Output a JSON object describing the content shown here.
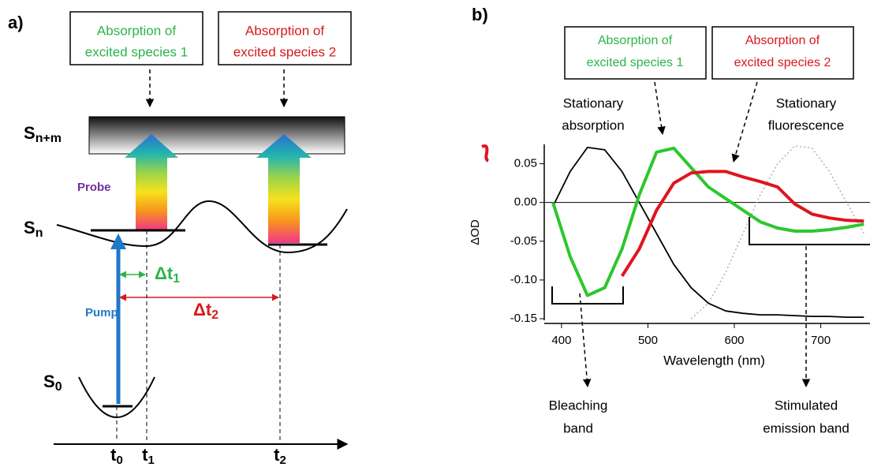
{
  "panel_a": {
    "label": "a)",
    "box_1": [
      "Absorption of",
      "excited species 1"
    ],
    "box_2": [
      "Absorption of",
      "excited species 2"
    ],
    "level_top": {
      "main": "S",
      "sub": "n+m"
    },
    "level_mid": {
      "main": "S",
      "sub": "n"
    },
    "level_ground": {
      "main": "S",
      "sub": "0"
    },
    "probe": "Probe",
    "pump": "Pump",
    "delta_1": {
      "main": "Δt",
      "sub": "1"
    },
    "delta_2": {
      "main": "Δt",
      "sub": "2"
    },
    "times": [
      {
        "main": "t",
        "sub": "0"
      },
      {
        "main": "t",
        "sub": "1"
      },
      {
        "main": "t",
        "sub": "2"
      }
    ]
  },
  "chart_data": {
    "type": "line",
    "label": "b)",
    "x_label": "Wavelength (nm)",
    "y_label": "ΔOD",
    "x": [
      390,
      410,
      430,
      450,
      470,
      490,
      510,
      530,
      550,
      570,
      590,
      610,
      630,
      650,
      670,
      690,
      710,
      730,
      750
    ],
    "series": [
      {
        "name": "Stationary absorption",
        "color": "#000000",
        "dash": false,
        "values": [
          -0.005,
          0.04,
          0.071,
          0.068,
          0.04,
          0.0,
          -0.04,
          -0.08,
          -0.11,
          -0.13,
          -0.14,
          -0.143,
          -0.145,
          -0.145,
          -0.146,
          -0.147,
          -0.147,
          -0.148,
          -0.148
        ]
      },
      {
        "name": "Stationary fluorescence",
        "color": "#b0b0b0",
        "dash": true,
        "values": [
          null,
          null,
          null,
          null,
          null,
          null,
          null,
          null,
          -0.15,
          -0.13,
          -0.09,
          -0.04,
          0.01,
          0.05,
          0.073,
          0.07,
          0.04,
          0.0,
          -0.04
        ]
      },
      {
        "name": "Absorption of excited species 1",
        "color": "#2cc72c",
        "dash": false,
        "values": [
          0.0,
          -0.07,
          -0.12,
          -0.11,
          -0.06,
          0.01,
          0.065,
          0.07,
          0.045,
          0.02,
          0.005,
          -0.01,
          -0.025,
          -0.033,
          -0.037,
          -0.037,
          -0.035,
          -0.032,
          -0.028
        ]
      },
      {
        "name": "Absorption of excited species 2",
        "color": "#e0141e",
        "dash": false,
        "values": [
          null,
          null,
          null,
          null,
          -0.095,
          -0.06,
          -0.01,
          0.025,
          0.038,
          0.04,
          0.04,
          0.033,
          0.027,
          0.02,
          -0.002,
          -0.015,
          -0.02,
          -0.023,
          -0.024
        ]
      }
    ],
    "xlim": [
      380,
      757
    ],
    "ylim": [
      -0.152,
      0.075
    ],
    "xticks": [
      400,
      500,
      600,
      700
    ],
    "yticks": [
      0.05,
      {
        "value": 0,
        "label": "0.00"
      },
      -0.05,
      {
        "value": -0.1,
        "label": "-0.10"
      },
      -0.15
    ],
    "zero_line": true,
    "annotations": {
      "box_1": [
        "Absorption of",
        "excited species 1"
      ],
      "box_2": [
        "Absorption of",
        "excited species 2"
      ],
      "absorption": [
        "Stationary",
        "absorption"
      ],
      "fluorescence": [
        "Stationary",
        "fluorescence"
      ],
      "bleaching": [
        "Bleaching",
        "band"
      ],
      "emission": [
        "Stimulated",
        "emission band"
      ]
    }
  }
}
